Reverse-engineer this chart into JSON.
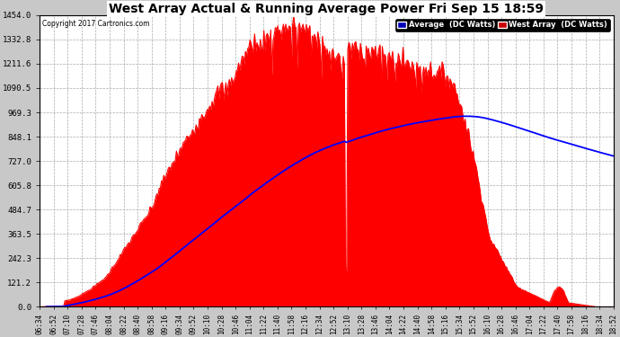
{
  "title": "West Array Actual & Running Average Power Fri Sep 15 18:59",
  "copyright": "Copyright 2017 Cartronics.com",
  "yticks": [
    0.0,
    121.2,
    242.3,
    363.5,
    484.7,
    605.8,
    727.0,
    848.1,
    969.3,
    1090.5,
    1211.6,
    1332.8,
    1454.0
  ],
  "ymax": 1454.0,
  "ymin": 0.0,
  "fill_color": "#ff0000",
  "avg_line_color": "#0000ff",
  "legend_avg_bg": "#0000bb",
  "legend_west_bg": "#cc0000",
  "x_labels": [
    "06:34",
    "06:52",
    "07:10",
    "07:28",
    "07:46",
    "08:04",
    "08:22",
    "08:40",
    "08:58",
    "09:16",
    "09:34",
    "09:52",
    "10:10",
    "10:28",
    "10:46",
    "11:04",
    "11:22",
    "11:40",
    "11:58",
    "12:16",
    "12:34",
    "12:52",
    "13:10",
    "13:28",
    "13:46",
    "14:04",
    "14:22",
    "14:40",
    "14:58",
    "15:16",
    "15:34",
    "15:52",
    "16:10",
    "16:28",
    "16:46",
    "17:04",
    "17:22",
    "17:40",
    "17:58",
    "18:16",
    "18:34",
    "18:52"
  ]
}
